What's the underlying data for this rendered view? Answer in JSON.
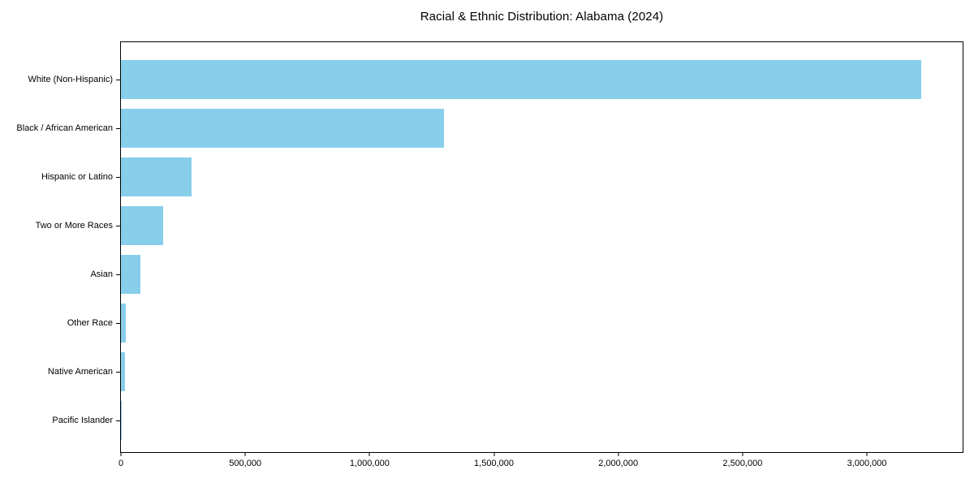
{
  "title": "Racial & Ethnic Distribution: Alabama (2024)",
  "colors": {
    "bar": "#87CEEB",
    "axis": "#000000",
    "background": "#FFFFFF",
    "text": "#000000"
  },
  "chart_data": {
    "type": "bar",
    "orientation": "horizontal",
    "title": "Racial & Ethnic Distribution: Alabama (2024)",
    "categories": [
      "White (Non-Hispanic)",
      "Black / African American",
      "Hispanic or Latino",
      "Two or More Races",
      "Asian",
      "Other Race",
      "Native American",
      "Pacific Islander"
    ],
    "values": [
      3220000,
      1300000,
      285000,
      170000,
      78000,
      20000,
      16000,
      2500
    ],
    "xlabel": "",
    "ylabel": "",
    "xlim": [
      0,
      3385000
    ],
    "x_ticks": [
      0,
      500000,
      1000000,
      1500000,
      2000000,
      2500000,
      3000000
    ],
    "x_tick_labels": [
      "0",
      "500,000",
      "1,000,000",
      "1,500,000",
      "2,000,000",
      "2,500,000",
      "3,000,000"
    ],
    "grid": false,
    "legend": false,
    "bar_color": "#87CEEB"
  }
}
